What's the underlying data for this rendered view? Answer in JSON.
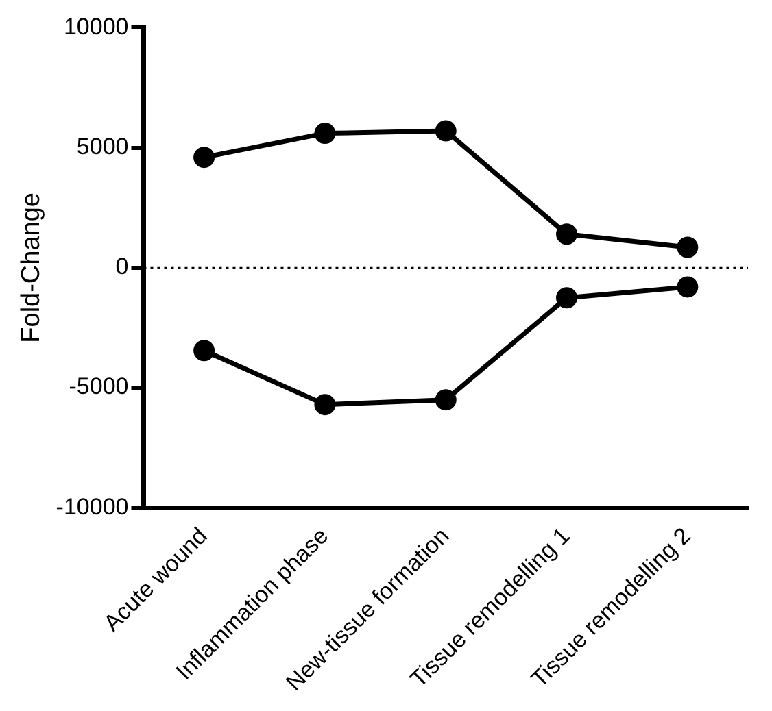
{
  "chart_data": {
    "type": "line",
    "ylabel": "Fold-Change",
    "categories": [
      "Acute wound",
      "Inflammation phase",
      "New-tissue formation",
      "Tissue remodelling 1",
      "Tissue remodelling 2"
    ],
    "series": [
      {
        "color": "#000000",
        "values": [
          4600,
          5600,
          5700,
          1400,
          850
        ]
      },
      {
        "color": "#000000",
        "values": [
          -3450,
          -5700,
          -5500,
          -1250,
          -800
        ]
      }
    ],
    "ylim": [
      -10000,
      10000
    ],
    "yticks": [
      -10000,
      -5000,
      0,
      5000,
      10000
    ],
    "ref_lines": [
      {
        "axis": "y",
        "value": 0,
        "color": "#000000",
        "line_style": "dotted"
      }
    ],
    "grid": false,
    "legend": false,
    "marker": "circle",
    "line_style": "solid"
  }
}
